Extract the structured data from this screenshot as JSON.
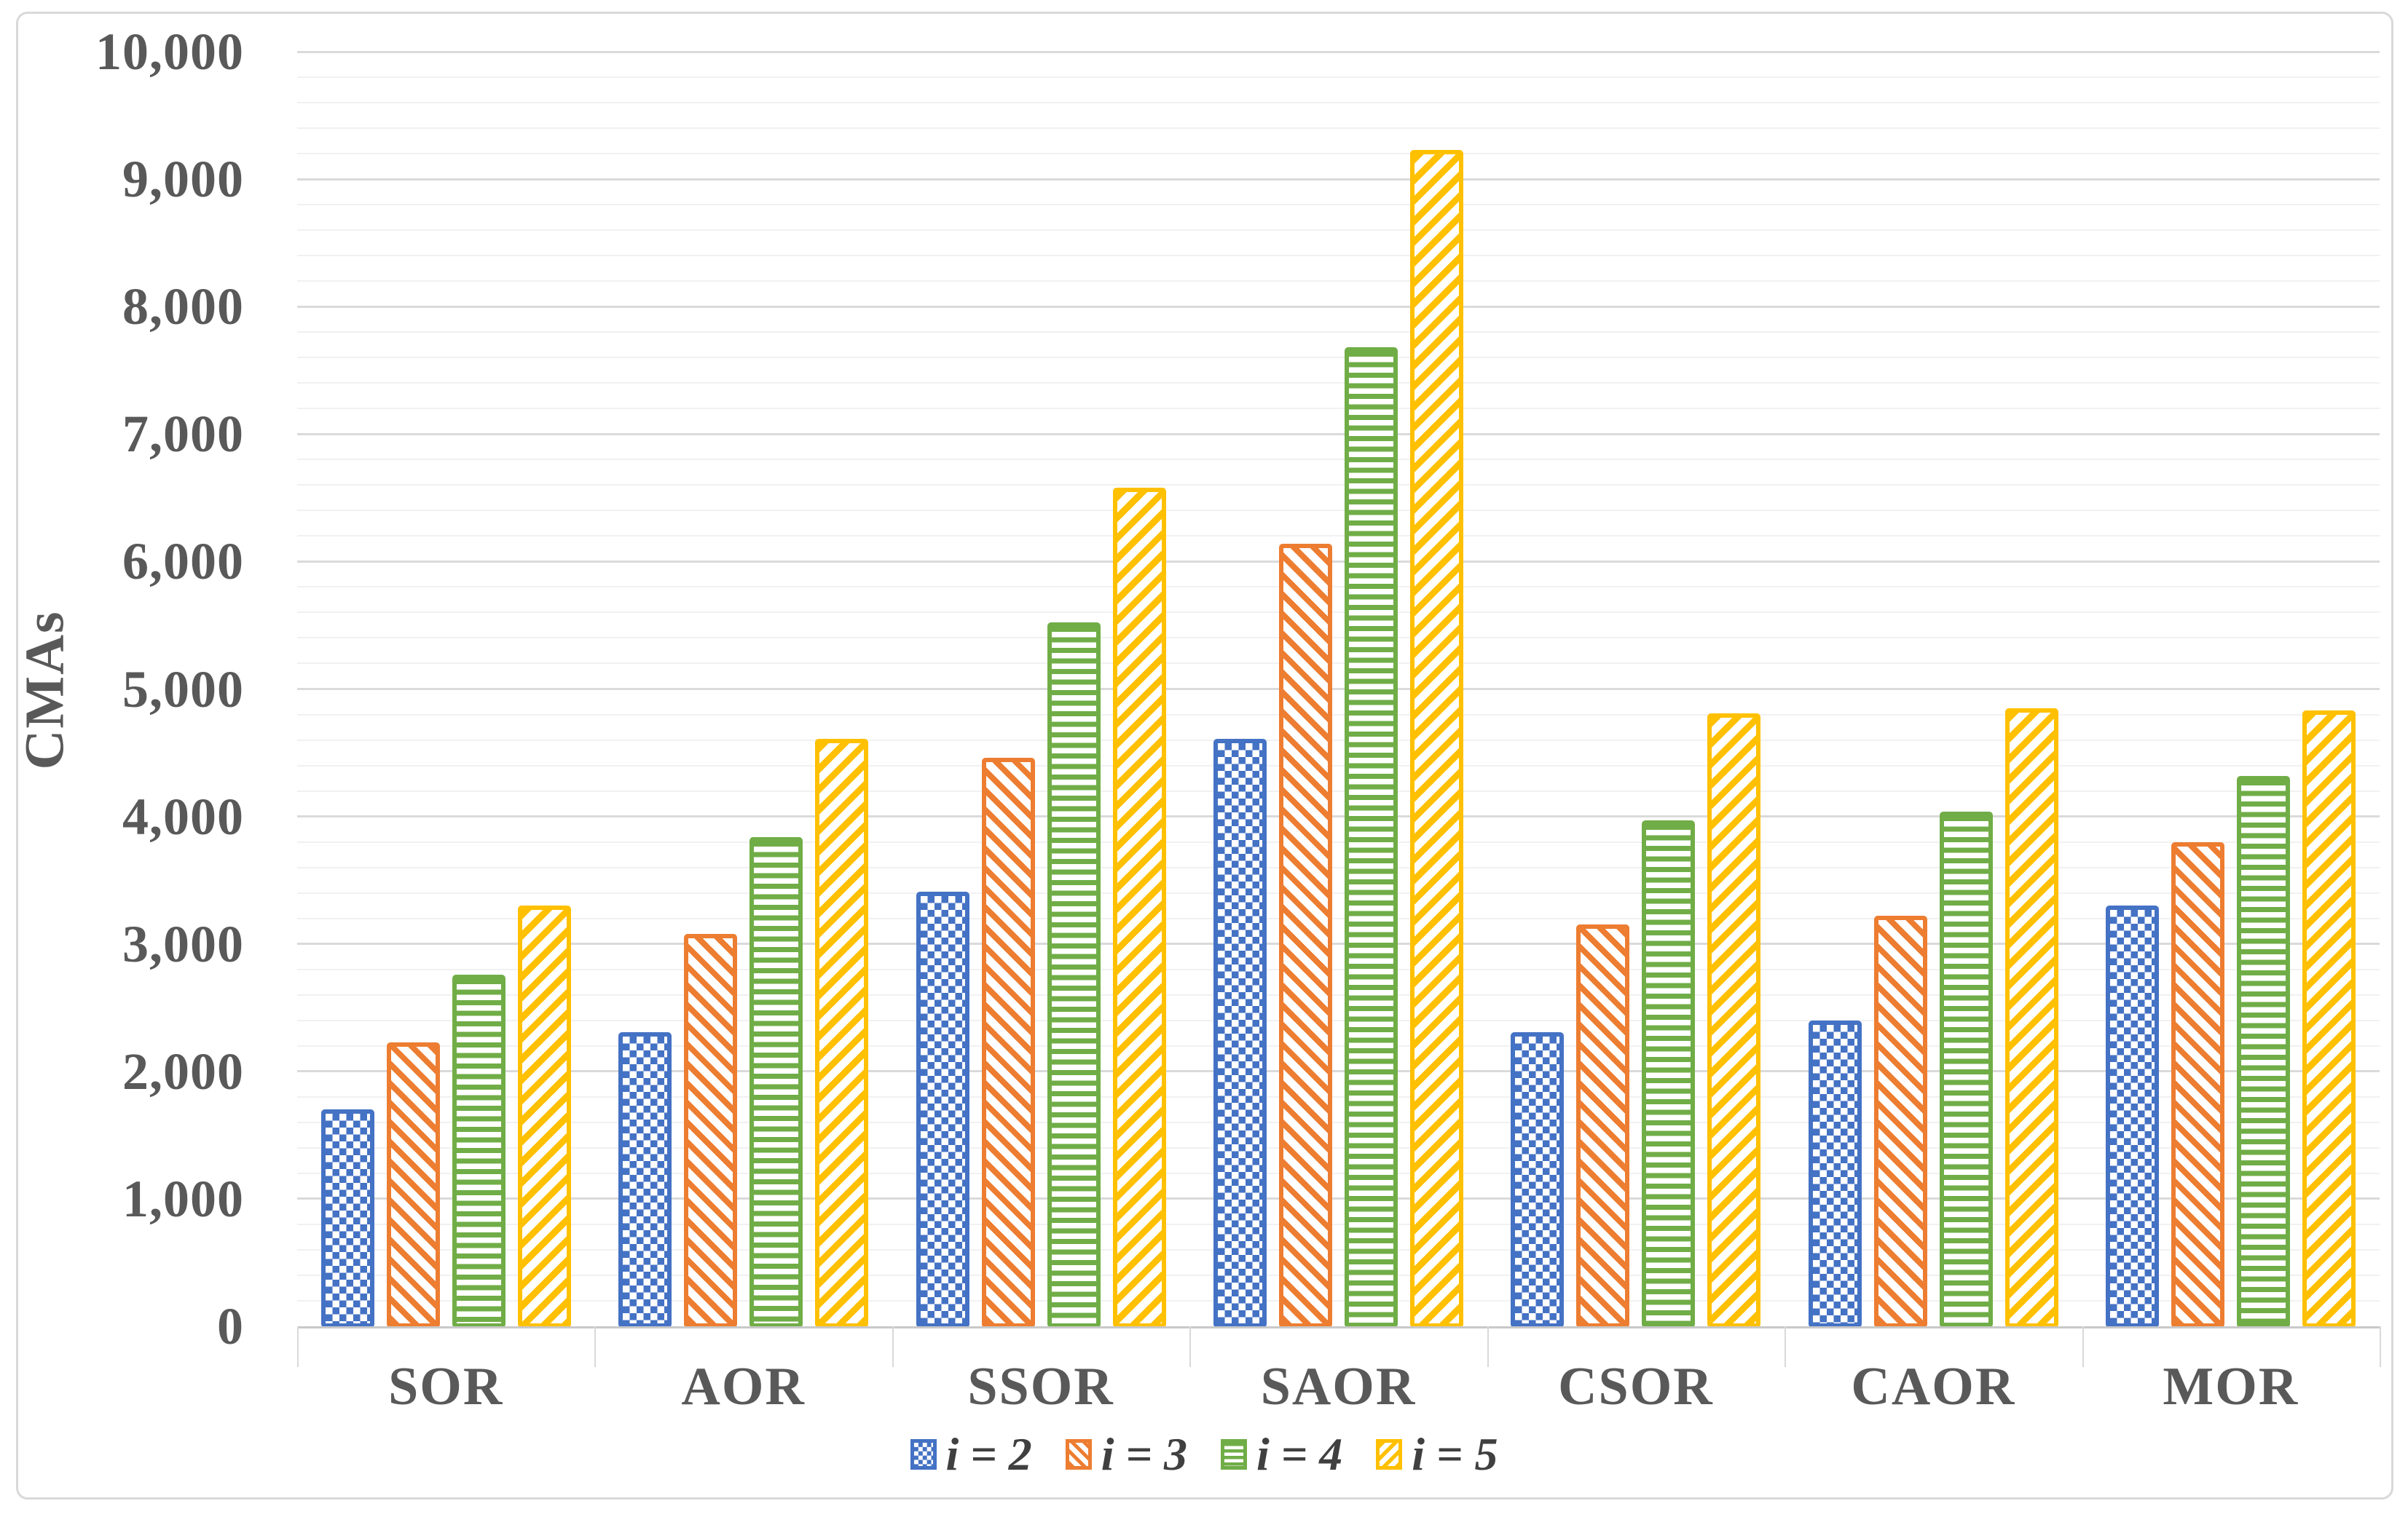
{
  "figure": {
    "background": "#FFFFFF",
    "frame_color": "#D9D9D9",
    "axis_text_color": "#595959",
    "legend_text_color": "#404040",
    "major_gridline_color": "#DADADA",
    "minor_gridline_color": "#F1F1F1"
  },
  "chart_data": {
    "type": "bar",
    "title": "",
    "xlabel": "",
    "ylabel": "CMAs",
    "categories": [
      "SOR",
      "AOR",
      "SSOR",
      "SAOR",
      "CSOR",
      "CAOR",
      "MOR"
    ],
    "series": [
      {
        "name": "i = 2",
        "color": "#4472C4",
        "pattern": "checker",
        "values": [
          1700,
          2310,
          3410,
          4610,
          2310,
          2400,
          3300
        ]
      },
      {
        "name": "i = 3",
        "color": "#ED7D31",
        "pattern": "diag-down",
        "values": [
          2230,
          3080,
          4460,
          6140,
          3150,
          3220,
          3800
        ]
      },
      {
        "name": "i = 4",
        "color": "#70AD47",
        "pattern": "horizontal",
        "values": [
          2760,
          3840,
          5520,
          7680,
          3970,
          4040,
          4320
        ]
      },
      {
        "name": "i = 5",
        "color": "#FFC000",
        "pattern": "diag-up",
        "values": [
          3300,
          4610,
          6580,
          9230,
          4810,
          4850,
          4830
        ]
      }
    ],
    "ylim": [
      0,
      10000
    ],
    "ytick_step": 1000,
    "yminor_step": 200,
    "ytick_labels": [
      "0",
      "1,000",
      "2,000",
      "3,000",
      "4,000",
      "5,000",
      "6,000",
      "7,000",
      "8,000",
      "9,000",
      "10,000"
    ],
    "grid": "major and minor horizontal gridlines",
    "legend_position": "bottom center"
  }
}
